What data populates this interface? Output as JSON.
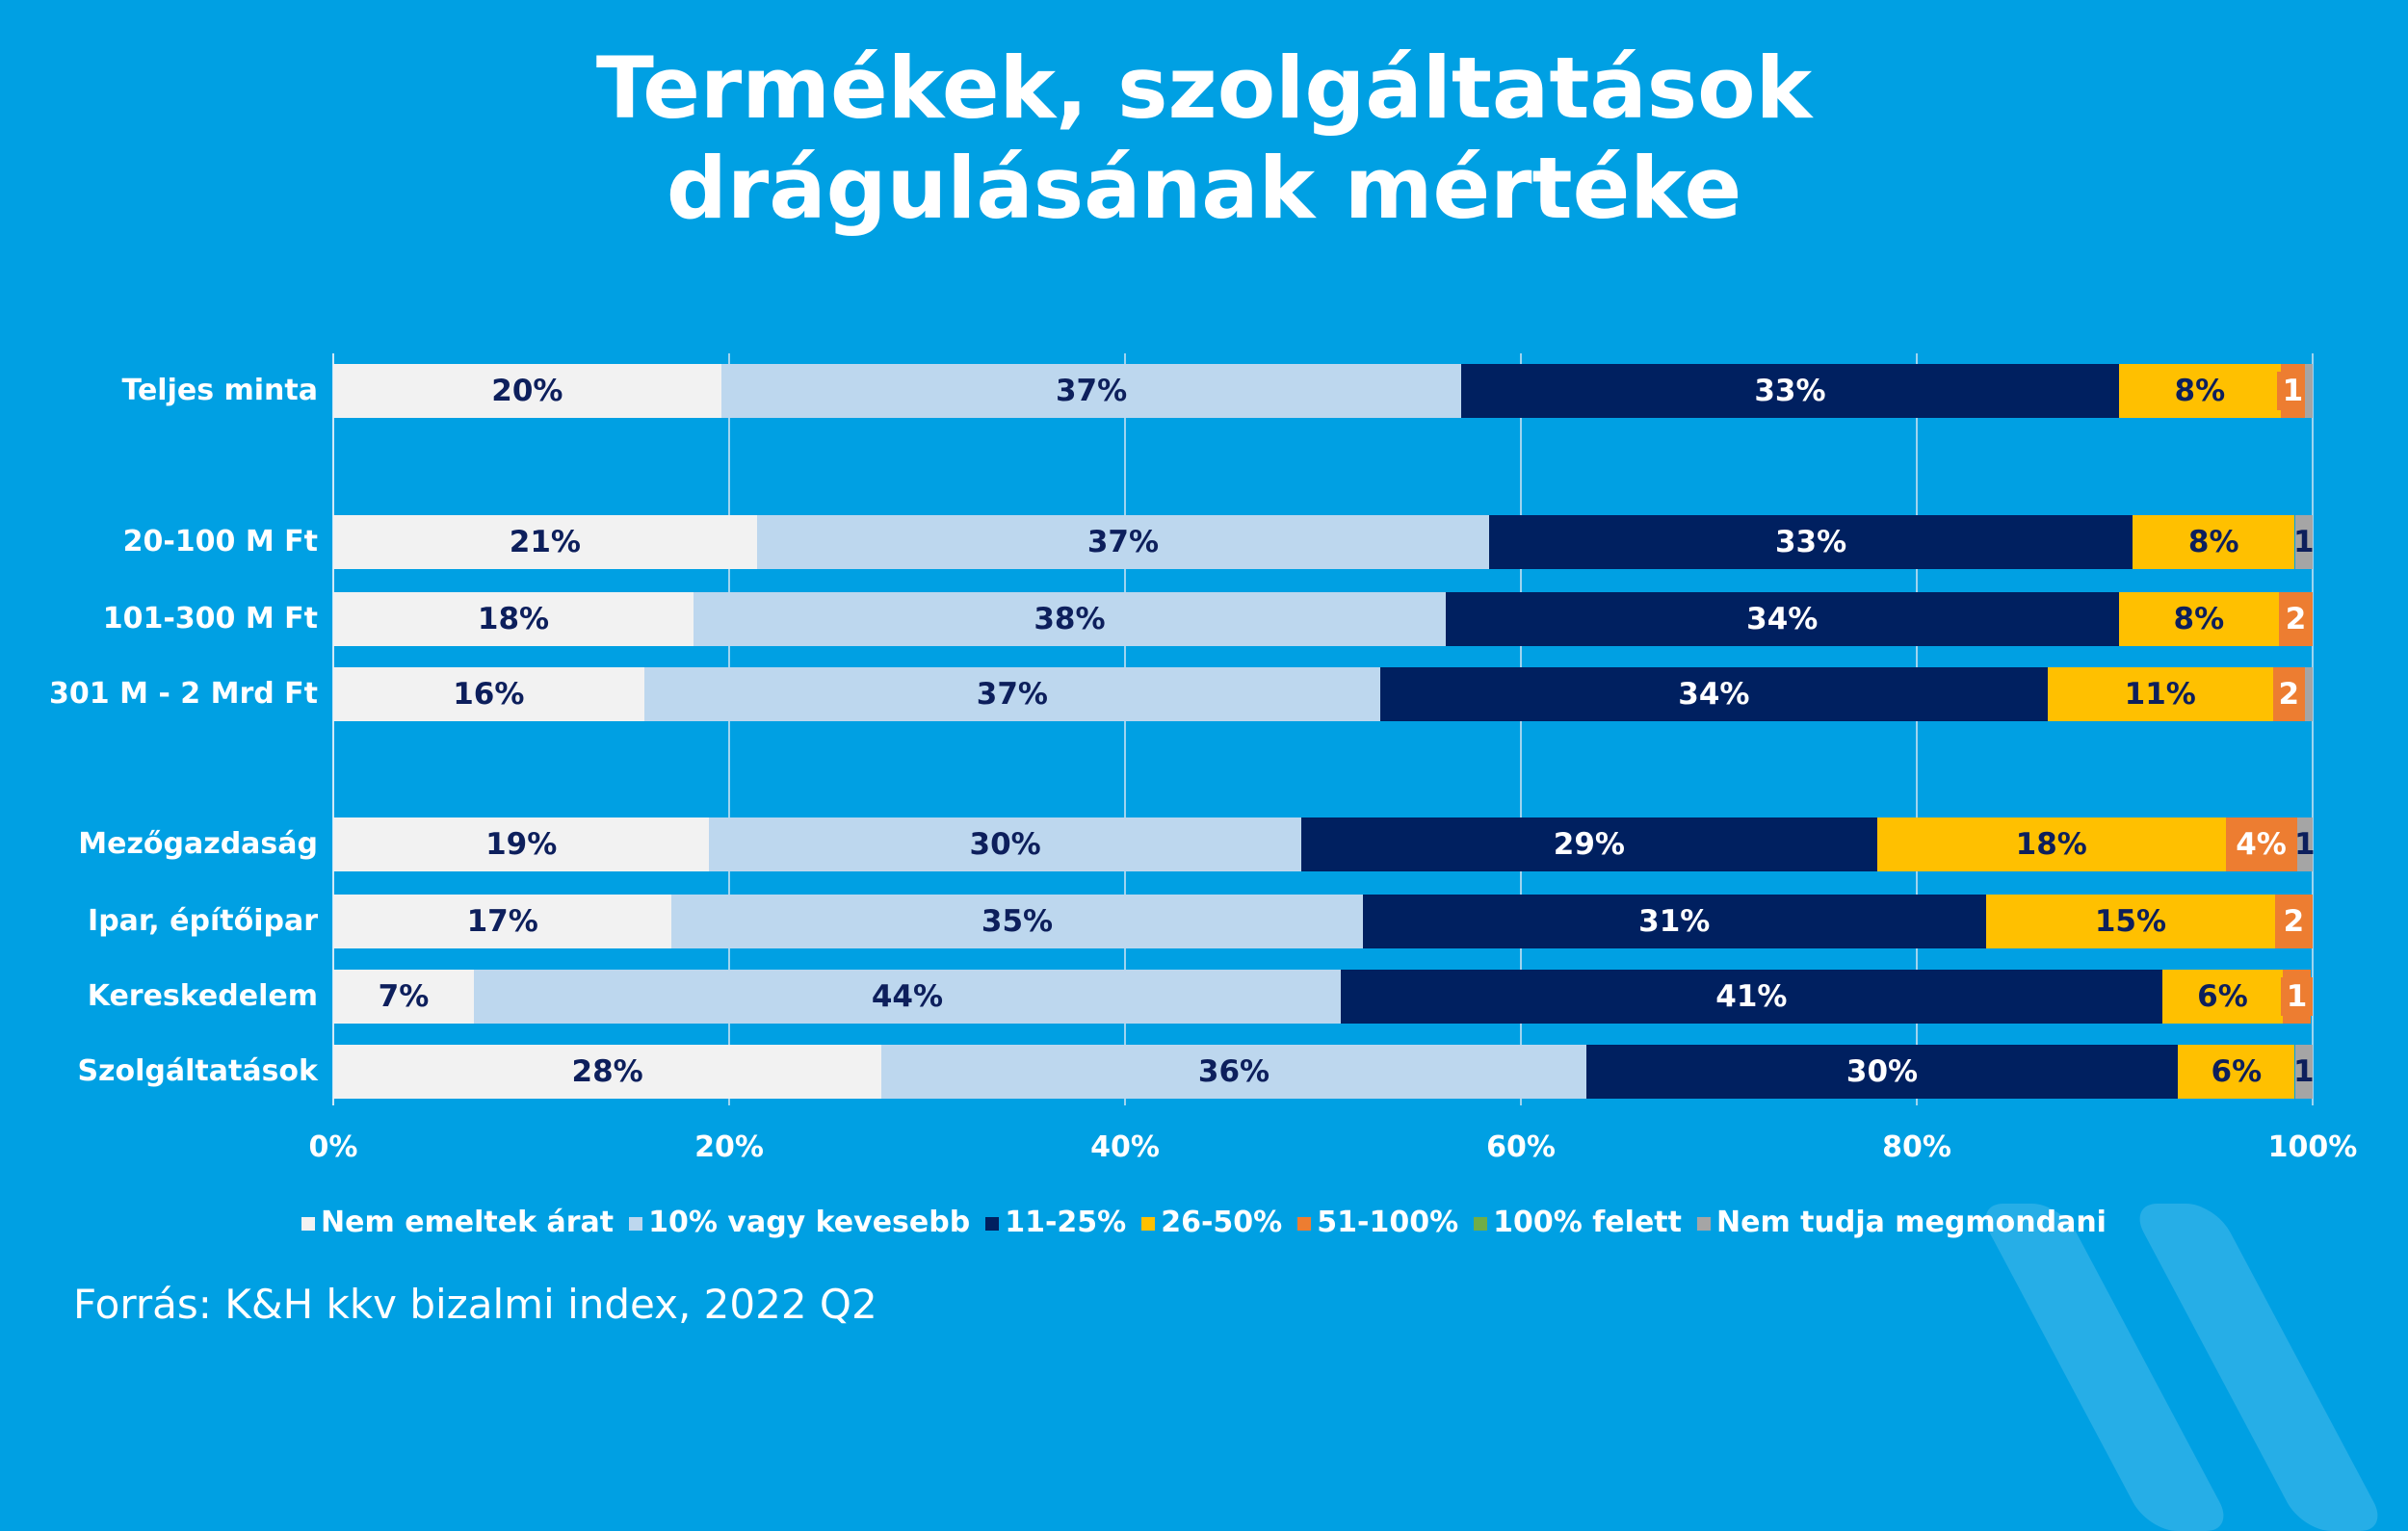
{
  "title_lines": [
    "Termékek, szolgáltatások",
    "drágulásának mértéke"
  ],
  "source": "Forrás: K&H kkv bizalmi index, 2022 Q2",
  "chart_data": {
    "type": "bar",
    "orientation": "horizontal",
    "stacked": "percent",
    "title": "Termékek, szolgáltatások drágulásának mértéke",
    "xlim": [
      0,
      100
    ],
    "x_ticks": [
      "0%",
      "20%",
      "40%",
      "60%",
      "80%",
      "100%"
    ],
    "grid": true,
    "legend_position": "bottom",
    "categories": [
      "Teljes minta",
      "20-100 M Ft",
      "101-300 M Ft",
      "301 M - 2 Mrd Ft",
      "Mezőgazdaság",
      "Ipar, építőipar",
      "Kereskedelem",
      "Szolgáltatások"
    ],
    "series": [
      {
        "name": "Nem emeltek árat",
        "color": "#F2F2F2",
        "text_color": "#0D1F5C",
        "values": [
          19.6,
          21.4,
          18.2,
          15.7,
          19.0,
          17.1,
          7.1,
          27.7
        ],
        "labels": [
          "20%",
          "21%",
          "18%",
          "16%",
          "19%",
          "17%",
          "7%",
          "28%"
        ]
      },
      {
        "name": "10% vagy kevesebb",
        "color": "#BDD7EE",
        "text_color": "#0D1F5C",
        "values": [
          37.4,
          37.0,
          38.0,
          37.2,
          29.9,
          34.9,
          43.8,
          35.6
        ],
        "labels": [
          "37%",
          "37%",
          "38%",
          "37%",
          "30%",
          "35%",
          "44%",
          "36%"
        ]
      },
      {
        "name": "11-25%",
        "color": "#002060",
        "text_color": "#FFFFFF",
        "values": [
          33.2,
          32.5,
          34.0,
          33.7,
          29.1,
          31.5,
          41.5,
          29.9
        ],
        "labels": [
          "33%",
          "33%",
          "34%",
          "34%",
          "29%",
          "31%",
          "41%",
          "30%"
        ]
      },
      {
        "name": "26-50%",
        "color": "#FFC000",
        "text_color": "#0D1F5C",
        "values": [
          8.2,
          8.2,
          8.1,
          11.4,
          17.6,
          14.6,
          6.1,
          5.9
        ],
        "labels": [
          "8%",
          "8%",
          "8%",
          "11%",
          "18%",
          "15%",
          "6%",
          "6%"
        ]
      },
      {
        "name": "51-100%",
        "color": "#ED7D31",
        "text_color": "#FFFFFF",
        "values": [
          1.2,
          0,
          1.7,
          1.6,
          3.6,
          1.9,
          1.4,
          0
        ],
        "labels": [
          "1",
          "",
          "2",
          "2",
          "4%",
          "2",
          "1",
          ""
        ]
      },
      {
        "name": "100% felett",
        "color": "#70AD47",
        "text_color": "#FFFFFF",
        "values": [
          0,
          0,
          0,
          0,
          0,
          0,
          0,
          0
        ],
        "labels": [
          "",
          "",
          "",
          "",
          "",
          "",
          "",
          ""
        ]
      },
      {
        "name": "Nem tudja megmondani",
        "color": "#A5A5A5",
        "text_color": "#0D1F5C",
        "values": [
          0.4,
          0.9,
          0,
          0.4,
          0.8,
          0,
          0,
          0.9
        ],
        "labels": [
          "",
          "1",
          "",
          "",
          "1",
          "",
          "",
          "1"
        ]
      }
    ]
  }
}
